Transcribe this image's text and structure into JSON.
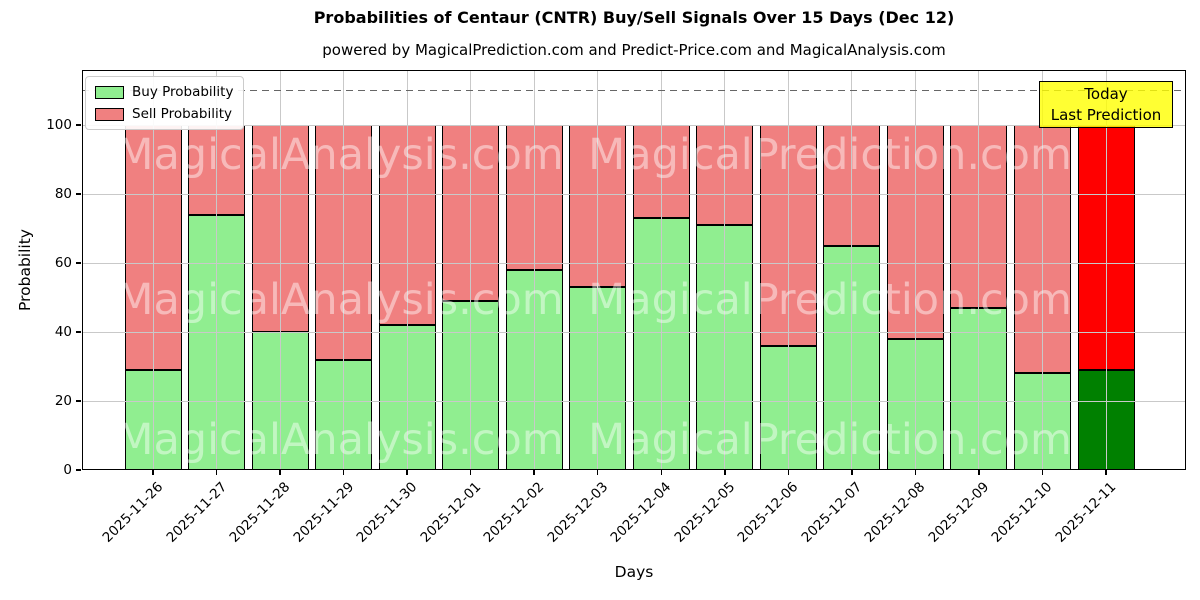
{
  "title": "Probabilities of Centaur (CNTR) Buy/Sell Signals Over 15 Days (Dec 12)",
  "subtitle": "powered by MagicalPrediction.com and Predict-Price.com and MagicalAnalysis.com",
  "legend": {
    "buy_label": "Buy Probability",
    "sell_label": "Sell Probability"
  },
  "annotation": {
    "line1": "Today",
    "line2": "Last Prediction"
  },
  "axes": {
    "ylabel": "Probability",
    "xlabel": "Days",
    "yticks": [
      0,
      20,
      40,
      60,
      80,
      100
    ],
    "ymax_units": 116,
    "dashed_line_y": 110
  },
  "watermarks": [
    "MagicalAnalysis.com",
    "MagicalPrediction.com"
  ],
  "colors": {
    "buy": "#90EE90",
    "sell": "#F08080",
    "last_buy": "#008000",
    "last_sell": "#FF0000",
    "bar_edge": "#000000",
    "grid": "#C9C9C9",
    "dashed_line": "#666666",
    "annotation_bg": "rgba(255,255,0,0.8)",
    "watermark": "rgba(255,255,255,0.45)"
  },
  "chart_data": {
    "type": "bar",
    "stacked": true,
    "title": "Probabilities of Centaur (CNTR) Buy/Sell Signals Over 15 Days (Dec 12)",
    "xlabel": "Days",
    "ylabel": "Probability",
    "ylim": [
      0,
      116
    ],
    "grid": true,
    "legend_position": "upper left",
    "categories": [
      "2025-11-26",
      "2025-11-27",
      "2025-11-28",
      "2025-11-29",
      "2025-11-30",
      "2025-12-01",
      "2025-12-02",
      "2025-12-03",
      "2025-12-04",
      "2025-12-05",
      "2025-12-06",
      "2025-12-07",
      "2025-12-08",
      "2025-12-09",
      "2025-12-10",
      "2025-12-11"
    ],
    "series": [
      {
        "name": "Buy Probability",
        "color": "#90EE90",
        "values": [
          29,
          74,
          40,
          32,
          42,
          49,
          58,
          53,
          73,
          71,
          36,
          65,
          38,
          47,
          28,
          29
        ]
      },
      {
        "name": "Sell Probability",
        "color": "#F08080",
        "values": [
          71,
          26,
          60,
          68,
          58,
          51,
          42,
          47,
          27,
          29,
          64,
          35,
          62,
          53,
          72,
          71
        ]
      }
    ],
    "last_bar_highlight": {
      "buy_color": "#008000",
      "sell_color": "#FF0000",
      "label": "Today Last Prediction"
    }
  }
}
